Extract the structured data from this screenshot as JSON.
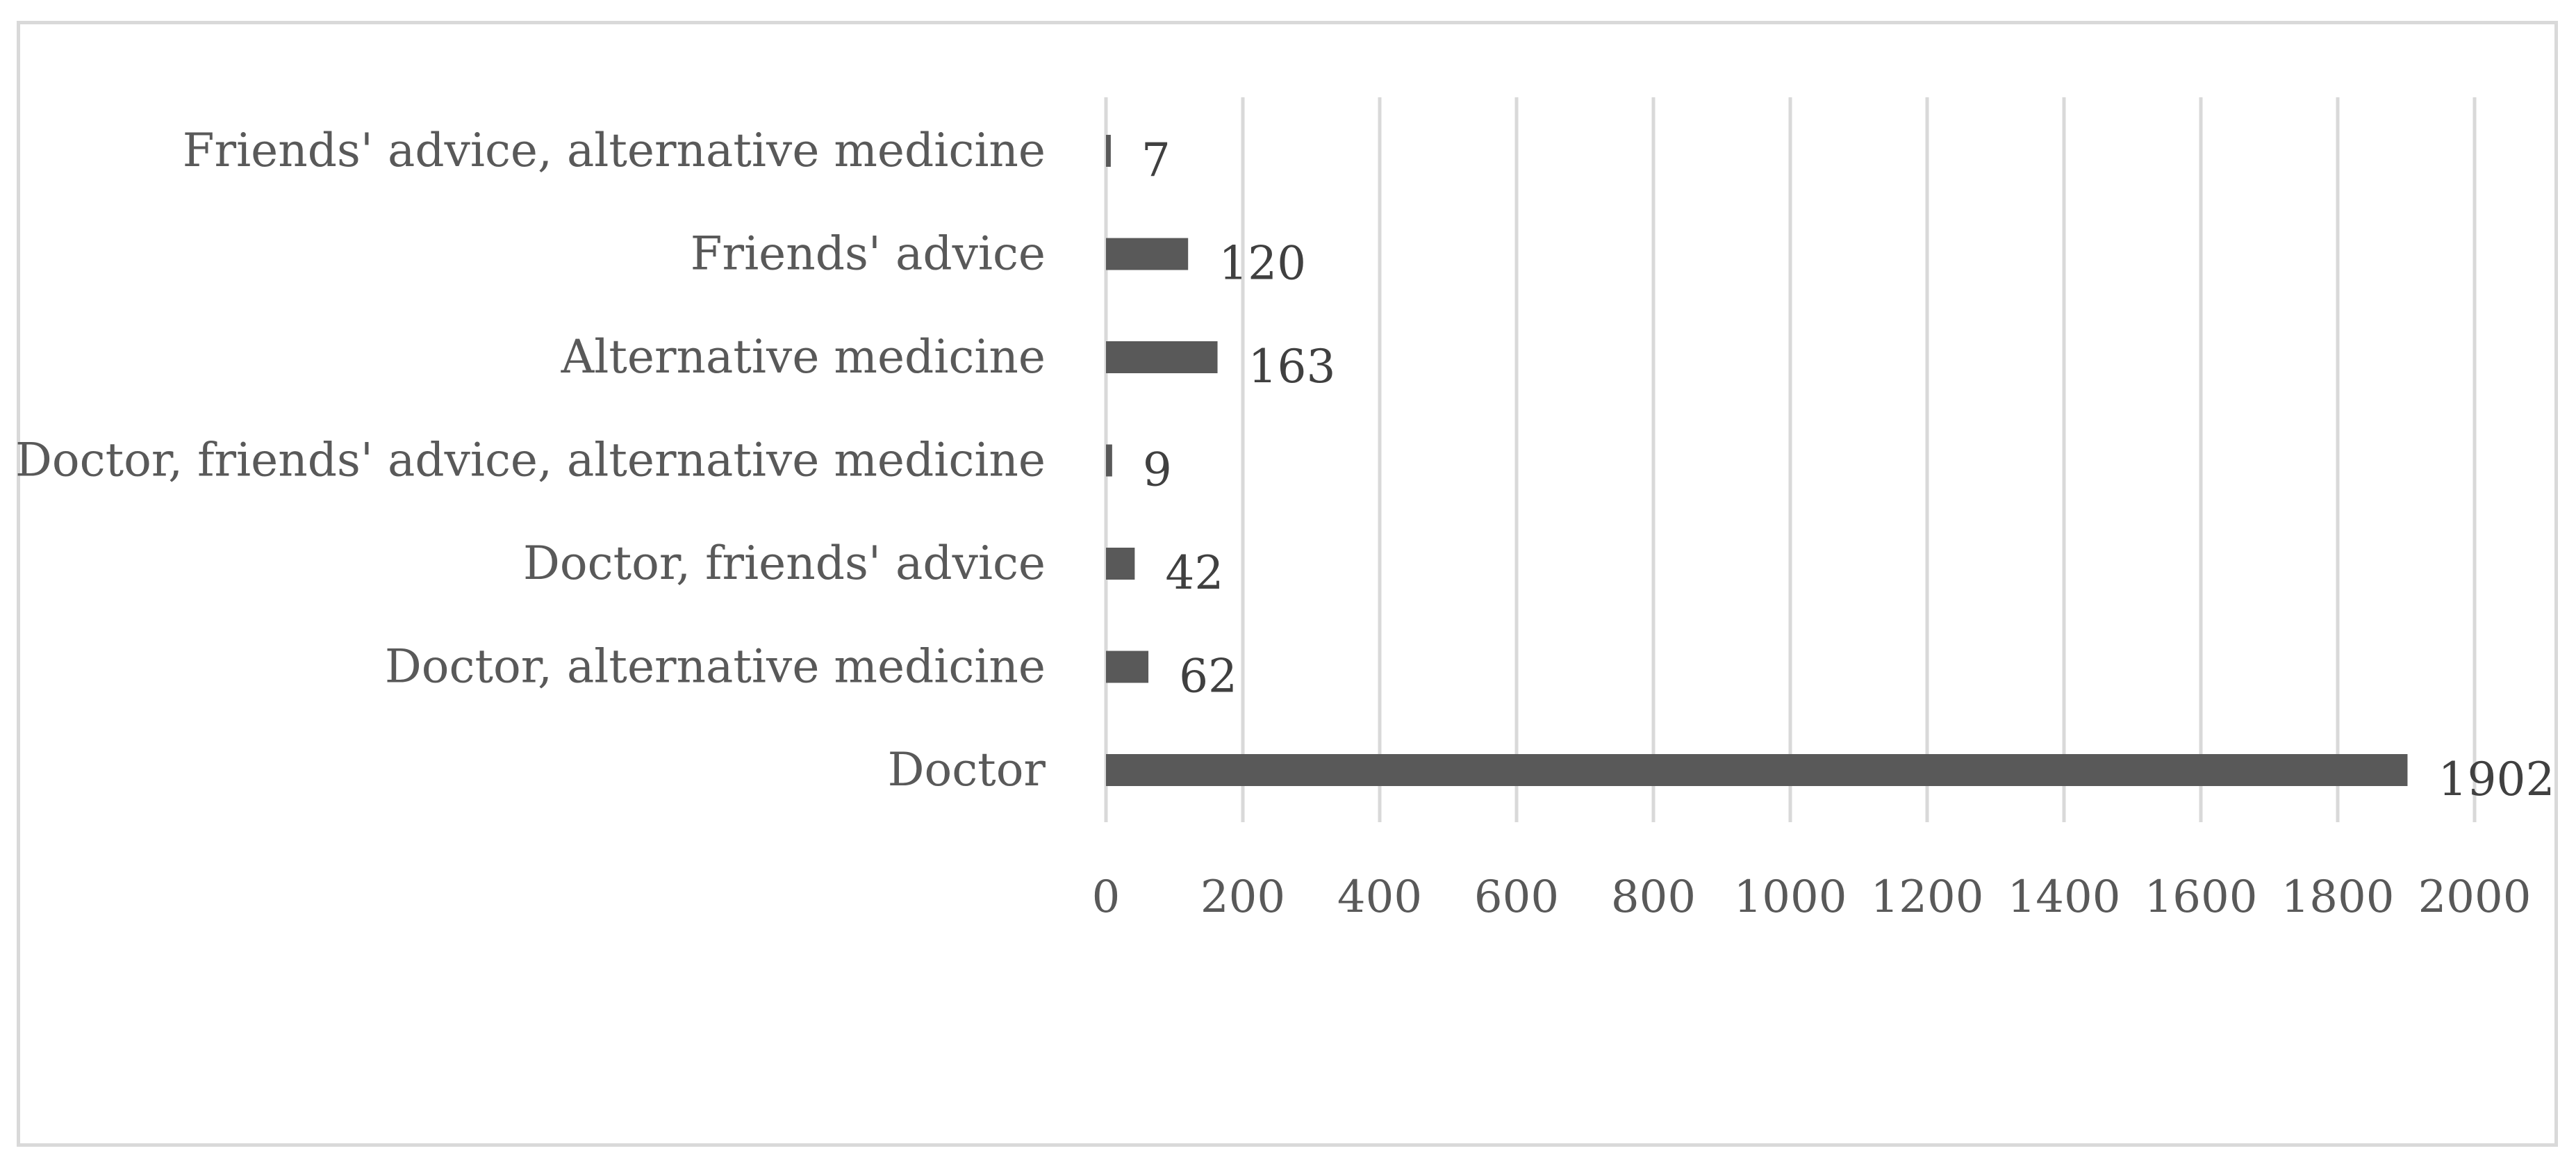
{
  "chart_data": {
    "type": "bar",
    "orientation": "horizontal",
    "categories": [
      "Doctor",
      "Doctor, alternative medicine",
      "Doctor, friends' advice",
      "Doctor, friends' advice, alternative medicine",
      "Alternative medicine",
      "Friends' advice",
      "Friends' advice, alternative medicine"
    ],
    "values": [
      1902,
      62,
      42,
      9,
      163,
      120,
      7
    ],
    "data_labels": [
      "1902",
      "62",
      "42",
      "9",
      "163",
      "120",
      "7"
    ],
    "xlim": [
      0,
      2000
    ],
    "x_ticks": [
      0,
      200,
      400,
      600,
      800,
      1000,
      1200,
      1400,
      1600,
      1800,
      2000
    ],
    "x_tick_labels": [
      "0",
      "200",
      "400",
      "600",
      "800",
      "1000",
      "1200",
      "1400",
      "1600",
      "1800",
      "2000"
    ],
    "grid": true,
    "legend": "none",
    "colors": {
      "bar": "#595959",
      "gridline": "#d9d9d9",
      "text": "#595959",
      "data_label": "#404040",
      "frame": "#d9d9d9"
    }
  }
}
